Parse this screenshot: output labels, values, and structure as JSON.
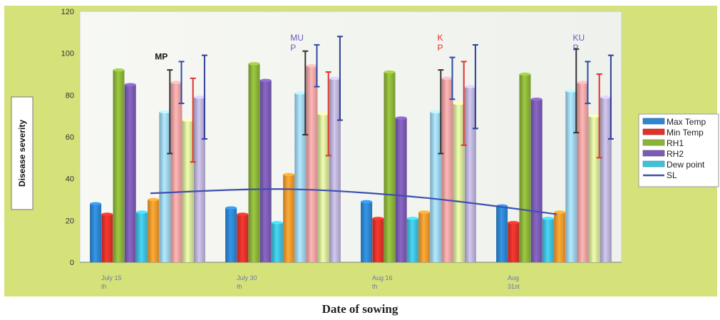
{
  "chart_data": {
    "type": "bar",
    "title": "",
    "xlabel": "Date of  sowing",
    "ylabel": "Disease severity",
    "ylim": [
      0,
      120
    ],
    "yticks": [
      0,
      20,
      40,
      60,
      80,
      100,
      120
    ],
    "grid": false,
    "legend_position": "right",
    "categories": [
      [
        "July 15",
        "th"
      ],
      [
        "July 30",
        "th"
      ],
      [
        "Aug 16",
        "th"
      ],
      [
        "Aug",
        "31st"
      ]
    ],
    "series": [
      {
        "name": "Max Temp",
        "color": "#2e86d1",
        "values": [
          28,
          26,
          29,
          27
        ]
      },
      {
        "name": "Min Temp",
        "color": "#e0322a",
        "values": [
          23,
          23,
          21,
          19
        ]
      },
      {
        "name": "RH1",
        "color": "#8cb43a",
        "values": [
          92,
          95,
          91,
          90
        ]
      },
      {
        "name": "RH2",
        "color": "#7b5cb3",
        "values": [
          85,
          87,
          69,
          78
        ]
      },
      {
        "name": "Dew point",
        "color": "#3fc1de",
        "values": [
          24,
          19,
          21,
          21
        ]
      },
      {
        "color": "#f29a2e",
        "values": [
          30,
          42,
          24,
          24
        ]
      },
      {
        "color": "#9fd2f1",
        "values": [
          72,
          81,
          72,
          82
        ],
        "error": [
          20,
          20,
          20,
          20
        ],
        "error_color": "#333333"
      },
      {
        "color": "#f4a3a3",
        "values": [
          86,
          94,
          88,
          86
        ],
        "error": [
          10,
          10,
          10,
          10
        ],
        "error_color": "#2e4aa8"
      },
      {
        "color": "#d7e79c",
        "values": [
          68,
          71,
          76,
          70
        ],
        "error": [
          20,
          20,
          20,
          20
        ],
        "error_color": "#e0322a"
      },
      {
        "color": "#bcb3d8",
        "values": [
          79,
          88,
          84,
          79
        ],
        "error": [
          20,
          20,
          20,
          20
        ],
        "error_color": "#2e3e99"
      }
    ],
    "line_series": {
      "name": "SL",
      "color": "#3e4fb0",
      "values": [
        33,
        35,
        31,
        23
      ]
    },
    "annotations": [
      {
        "lines": [
          "MP"
        ],
        "color": "#111111",
        "category": 0,
        "bar": 6
      },
      {
        "lines": [
          "MU",
          "P"
        ],
        "color": "#6a5cc0",
        "category": 1,
        "bar": 6
      },
      {
        "lines": [
          "K",
          "P"
        ],
        "color": "#e0322a",
        "category": 2,
        "bar": 7
      },
      {
        "lines": [
          "KU",
          "P"
        ],
        "color": "#6a5cc0",
        "category": 3,
        "bar": 7
      }
    ]
  }
}
